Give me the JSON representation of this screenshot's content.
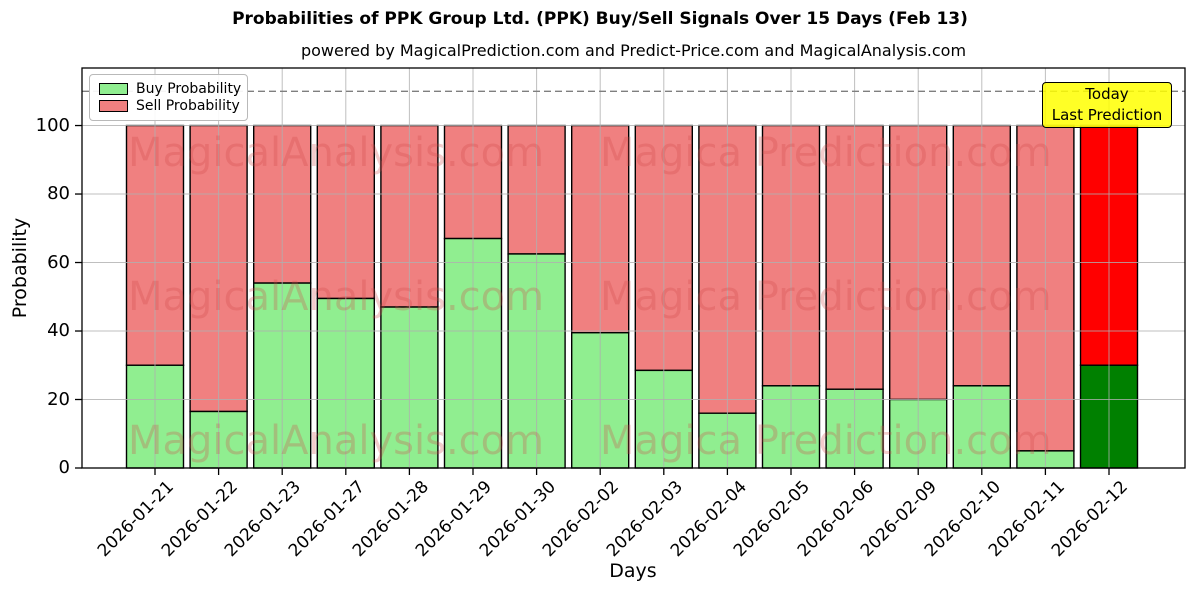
{
  "header": {
    "title": "Probabilities of PPK Group Ltd. (PPK) Buy/Sell Signals Over 15 Days (Feb 13)",
    "subtitle": "powered by MagicalPrediction.com and Predict-Price.com and MagicalAnalysis.com"
  },
  "legend": {
    "items": [
      {
        "label": "Buy Probability",
        "color": "#90ee90"
      },
      {
        "label": "Sell Probability",
        "color": "#f08080"
      }
    ]
  },
  "annotation": {
    "line1": "Today",
    "line2": "Last Prediction",
    "bg": "#ffff00",
    "border": "#000000"
  },
  "watermark": {
    "left_text": "MagicalAnalysis.com",
    "right_text": "Magica Prediction.com",
    "color": "#d24a4a",
    "opacity": 0.28,
    "rows": 3
  },
  "chart_data": {
    "type": "bar",
    "stacked": true,
    "title": "Probabilities of PPK Group Ltd. (PPK) Buy/Sell Signals Over 15 Days (Feb 13)",
    "xlabel": "Days",
    "ylabel": "Probability",
    "categories": [
      "2026-01-21",
      "2026-01-22",
      "2026-01-23",
      "2026-01-27",
      "2026-01-28",
      "2026-01-29",
      "2026-01-30",
      "2026-02-02",
      "2026-02-03",
      "2026-02-04",
      "2026-02-05",
      "2026-02-06",
      "2026-02-09",
      "2026-02-10",
      "2026-02-11",
      "2026-02-12"
    ],
    "series": [
      {
        "name": "Buy Probability",
        "color": "#90ee90",
        "today_color": "#008000",
        "values": [
          30,
          16.5,
          54,
          49.5,
          47,
          67,
          62.5,
          39.5,
          28.5,
          16,
          24,
          23,
          20,
          24,
          5,
          30
        ]
      },
      {
        "name": "Sell Probability",
        "color": "#f08080",
        "today_color": "#ff0000",
        "values": [
          70,
          83.5,
          46,
          50.5,
          53,
          33,
          37.5,
          60.5,
          71.5,
          84,
          76,
          77,
          80,
          76,
          95,
          70
        ]
      }
    ],
    "yticks": [
      0,
      20,
      40,
      60,
      80,
      100
    ],
    "ylim": [
      0,
      116.8
    ],
    "dashed_line_y": 110,
    "today_index": 15,
    "grid": true,
    "legend_position": "upper left",
    "grid_color": "#b0b0b0",
    "dashed_line_color": "#7f7f7f"
  }
}
